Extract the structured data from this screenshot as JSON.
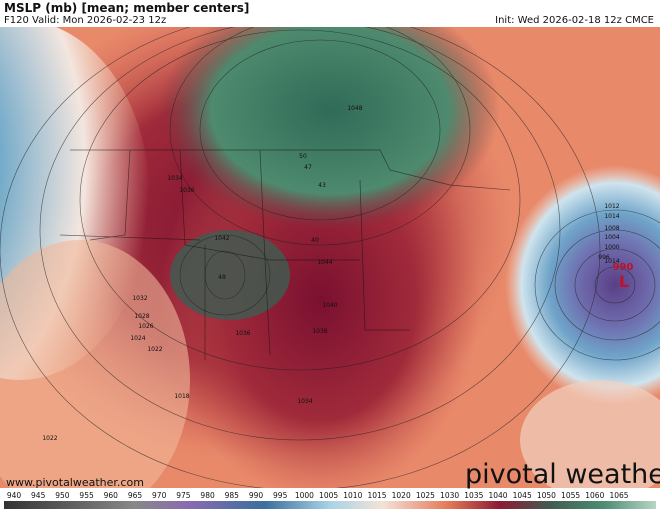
{
  "header": {
    "title": "MSLP (mb) [mean; member centers]",
    "valid": "F120 Valid: Mon 2026-02-23 12z",
    "init": "Init: Wed 2026-02-18 12z CMCE"
  },
  "map": {
    "labels": [
      "1034",
      "1036",
      "1042",
      "48",
      "1032",
      "1028",
      "1026",
      "1024",
      "1022",
      "1018",
      "1022",
      "1036",
      "1040",
      "1038",
      "1034",
      "1044",
      "40",
      "47",
      "43",
      "50",
      "1048",
      "1012",
      "1014",
      "1008",
      "1004",
      "1000",
      "996",
      "990",
      "L",
      "1014"
    ]
  },
  "footer": {
    "website": "www.pivotalweather.com",
    "watermark": "pivotal weather"
  },
  "colorbar": {
    "ticks": [
      940,
      945,
      950,
      955,
      960,
      965,
      970,
      975,
      980,
      985,
      990,
      995,
      1000,
      1005,
      1010,
      1015,
      1020,
      1025,
      1030,
      1035,
      1040,
      1045,
      1050,
      1055,
      1060,
      1065
    ]
  }
}
